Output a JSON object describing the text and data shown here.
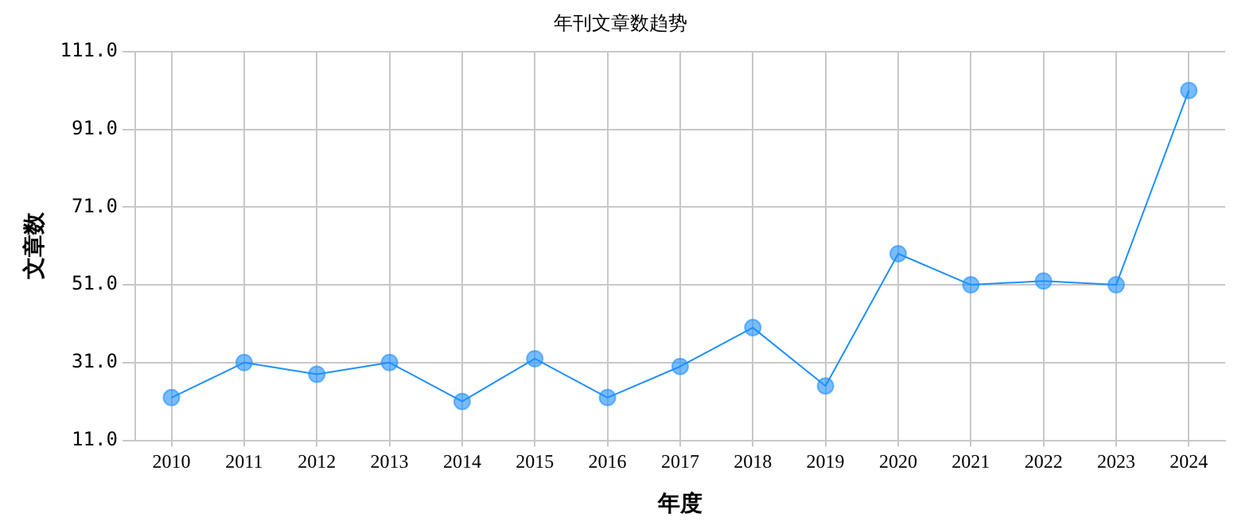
{
  "chart_data": {
    "type": "line",
    "title": "年刊文章数趋势",
    "xlabel": "年度",
    "ylabel": "文章数",
    "categories": [
      "2010",
      "2011",
      "2012",
      "2013",
      "2014",
      "2015",
      "2016",
      "2017",
      "2018",
      "2019",
      "2020",
      "2021",
      "2022",
      "2023",
      "2024"
    ],
    "series": [
      {
        "color": "#1e90ff",
        "values": [
          22,
          31,
          28,
          31,
          21,
          32,
          22,
          30,
          40,
          25,
          59,
          51,
          52,
          51,
          101
        ]
      }
    ],
    "ylim": [
      11,
      111
    ],
    "yticks": [
      {
        "value": 11,
        "label": "11.0"
      },
      {
        "value": 31,
        "label": "31.0"
      },
      {
        "value": 51,
        "label": "51.0"
      },
      {
        "value": 71,
        "label": "71.0"
      },
      {
        "value": 91,
        "label": "91.0"
      },
      {
        "value": 111,
        "label": "111.0"
      }
    ],
    "grid": true,
    "legend": false,
    "marker": "circle",
    "line_style": "solid"
  }
}
